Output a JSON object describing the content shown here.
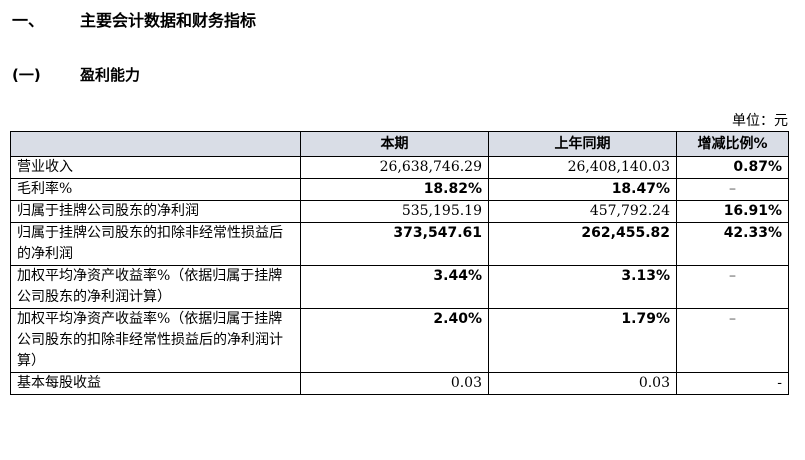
{
  "heading": {
    "number": "一、",
    "title": "主要会计数据和财务指标"
  },
  "subheading": {
    "number": "(一)",
    "title": "盈利能力"
  },
  "unit": "单位：元",
  "table": {
    "headers": [
      "",
      "本期",
      "上年同期",
      "增减比例%"
    ],
    "rows": [
      {
        "label": "营业收入",
        "current": "26,638,746.29",
        "prior": "26,408,140.03",
        "change": "0.87%"
      },
      {
        "label": "毛利率%",
        "current": "18.82%",
        "prior": "18.47%",
        "change": "–"
      },
      {
        "label": "归属于挂牌公司股东的净利润",
        "current": "535,195.19",
        "prior": "457,792.24",
        "change": "16.91%"
      },
      {
        "label": "归属于挂牌公司股东的扣除非经常性损益后的净利润",
        "current": "373,547.61",
        "prior": "262,455.82",
        "change": "42.33%"
      },
      {
        "label": "加权平均净资产收益率%（依据归属于挂牌公司股东的净利润计算）",
        "current": "3.44%",
        "prior": "3.13%",
        "change": "–"
      },
      {
        "label": "加权平均净资产收益率%（依据归属于挂牌公司股东的扣除非经常性损益后的净利润计算）",
        "current": "2.40%",
        "prior": "1.79%",
        "change": "–"
      },
      {
        "label": "基本每股收益",
        "current": "0.03",
        "prior": "0.03",
        "change": "-"
      }
    ]
  }
}
